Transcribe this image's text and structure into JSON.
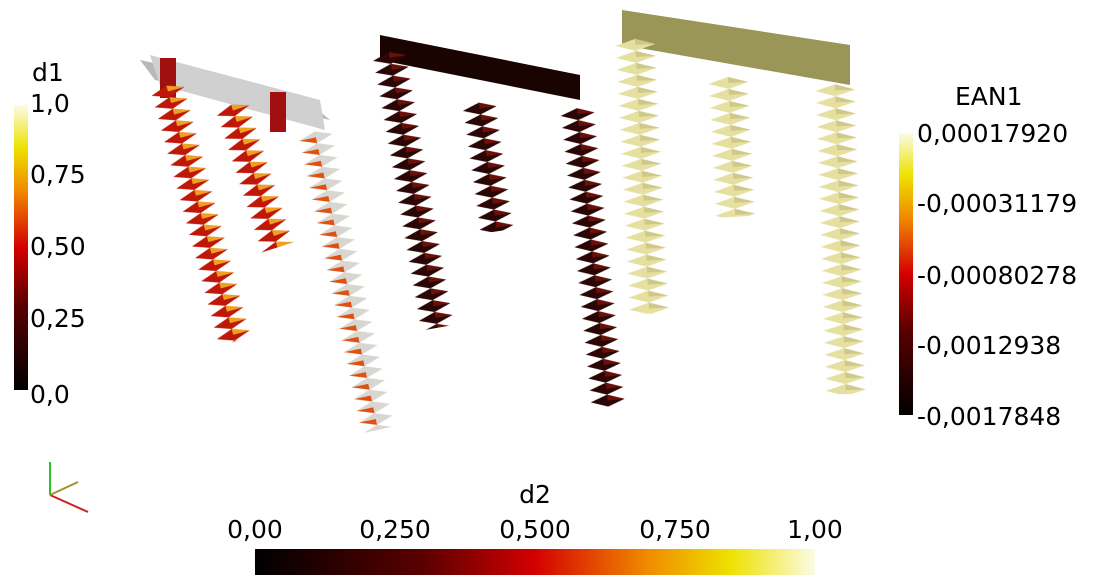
{
  "colorbars": {
    "d1": {
      "title": "d1",
      "labels": [
        "1,0",
        "0,75",
        "0,50",
        "0,25",
        "0,0"
      ]
    },
    "ean1": {
      "title": "EAN1",
      "labels": [
        "0,00017920",
        "-0,00031179",
        "-0,00080278",
        "-0,0012938",
        "-0,0017848"
      ]
    },
    "d2": {
      "title": "d2",
      "labels": [
        "0,00",
        "0,250",
        "0,500",
        "0,750",
        "1,00"
      ]
    }
  }
}
